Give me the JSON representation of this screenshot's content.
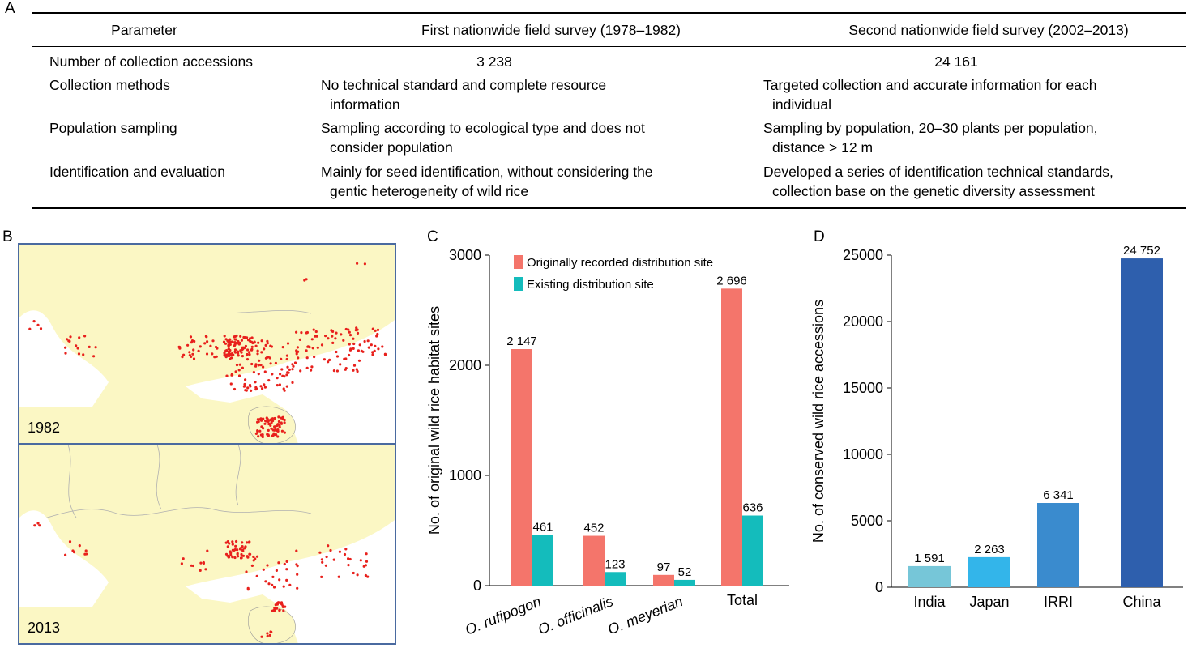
{
  "panels": {
    "a": "A",
    "b": "B",
    "c": "C",
    "d": "D"
  },
  "table": {
    "headers": [
      "Parameter",
      "First nationwide field survey (1978–1982)",
      "Second nationwide field survey (2002–2013)"
    ],
    "rows": [
      {
        "param": "Number of collection accessions",
        "first": [
          "3 238"
        ],
        "second": [
          "24 161"
        ]
      },
      {
        "param": "Collection methods",
        "first": [
          "No technical standard and complete resource",
          "information"
        ],
        "second": [
          "Targeted collection and accurate information for each",
          "individual"
        ]
      },
      {
        "param": "Population sampling",
        "first": [
          "Sampling according to ecological type and does not",
          "consider population"
        ],
        "second": [
          "Sampling by population, 20–30 plants per population,",
          "distance > 12 m"
        ]
      },
      {
        "param": "Identification and evaluation",
        "first": [
          "Mainly for seed identification, without considering the",
          "gentic heterogeneity of wild rice"
        ],
        "second": [
          "Developed a series of identification technical standards,",
          "collection base on the genetic diversity assessment"
        ]
      }
    ]
  },
  "maps": {
    "top_year": "1982",
    "bottom_year": "2013",
    "land_color": "#fbf7c4",
    "dot_color": "#e8201c",
    "border_color": "#4a6aa0"
  },
  "chart_data": [
    {
      "type": "bar",
      "categories": [
        "O. rufipogon",
        "O. officinalis",
        "O. meyerian",
        "Total"
      ],
      "series": [
        {
          "name": "Originally recorded distribution site",
          "values": [
            2147,
            452,
            97,
            2696
          ],
          "labels": [
            "2 147",
            "452",
            "97",
            "2 696"
          ],
          "color": "#f4756b"
        },
        {
          "name": "Existing distribution site",
          "values": [
            461,
            123,
            52,
            636
          ],
          "labels": [
            "461",
            "123",
            "52",
            "636"
          ],
          "color": "#14bcbc"
        }
      ],
      "ylabel": "No. of original wild rice habitat sites",
      "ylim": [
        0,
        3000
      ],
      "yticks": [
        0,
        1000,
        2000,
        3000
      ],
      "legend": "top"
    },
    {
      "type": "bar",
      "categories": [
        "India",
        "Japan",
        "IRRI",
        "China"
      ],
      "values": [
        1591,
        2263,
        6341,
        24752
      ],
      "labels": [
        "1 591",
        "2 263",
        "6 341",
        "24 752"
      ],
      "colors": [
        "#76c6d8",
        "#33b5ea",
        "#3a8bce",
        "#2e5fad"
      ],
      "ylabel": "No. of conserved wild rice accessions",
      "ylim": [
        0,
        25000
      ],
      "yticks": [
        0,
        5000,
        10000,
        15000,
        20000,
        25000
      ]
    }
  ]
}
